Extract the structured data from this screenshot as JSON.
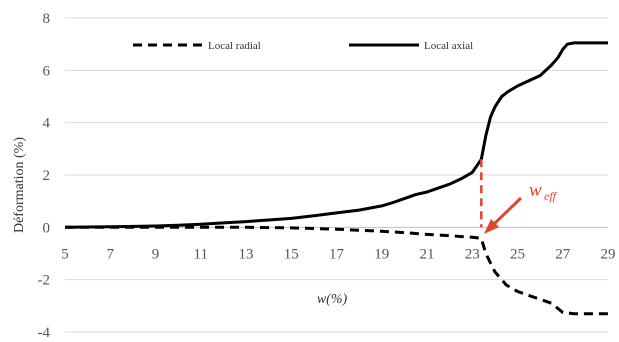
{
  "chart_data": {
    "type": "line",
    "xlabel": "w(%)",
    "ylabel": "Déformation (%)",
    "xlim": [
      5,
      29
    ],
    "ylim": [
      -4,
      8
    ],
    "x_ticks": [
      "5",
      "7",
      "9",
      "11",
      "13",
      "15",
      "17",
      "19",
      "21",
      "23",
      "25",
      "27",
      "29"
    ],
    "y_ticks": [
      "-4",
      "-2",
      "0",
      "2",
      "4",
      "6",
      "8"
    ],
    "grid": "horizontal",
    "legend_position": "top",
    "series": [
      {
        "name": "Local radial",
        "style": "dashed",
        "color": "#000000",
        "x": [
          5,
          7,
          9,
          11,
          13,
          15,
          17,
          19,
          20,
          21,
          22,
          23,
          23.4,
          23.6,
          24,
          24.5,
          25,
          25.5,
          26,
          26.5,
          27,
          27.5,
          28,
          29
        ],
        "y": [
          0,
          0,
          0,
          0,
          0,
          -0.02,
          -0.07,
          -0.15,
          -0.2,
          -0.27,
          -0.32,
          -0.38,
          -0.42,
          -1.0,
          -1.7,
          -2.2,
          -2.45,
          -2.6,
          -2.75,
          -2.9,
          -3.25,
          -3.3,
          -3.3,
          -3.3
        ]
      },
      {
        "name": "Local axial",
        "style": "solid",
        "color": "#000000",
        "x": [
          5,
          7,
          9,
          10,
          11,
          12,
          13,
          14,
          15,
          16,
          17,
          18,
          19,
          19.5,
          20,
          20.5,
          21,
          21.5,
          22,
          22.5,
          23,
          23.4,
          23.6,
          23.8,
          24,
          24.3,
          24.6,
          25,
          25.5,
          26,
          26.5,
          26.8,
          27,
          27.2,
          27.5,
          28,
          29
        ],
        "y": [
          0,
          0.02,
          0.05,
          0.08,
          0.12,
          0.17,
          0.22,
          0.28,
          0.34,
          0.44,
          0.55,
          0.66,
          0.82,
          0.95,
          1.1,
          1.25,
          1.35,
          1.5,
          1.65,
          1.85,
          2.1,
          2.6,
          3.5,
          4.2,
          4.6,
          5.0,
          5.2,
          5.4,
          5.6,
          5.8,
          6.2,
          6.5,
          6.8,
          7.0,
          7.05,
          7.05,
          7.05
        ]
      }
    ],
    "annotation": {
      "label": "w",
      "subscript": "eff",
      "x": 23.4,
      "color": "#e2442f"
    }
  }
}
